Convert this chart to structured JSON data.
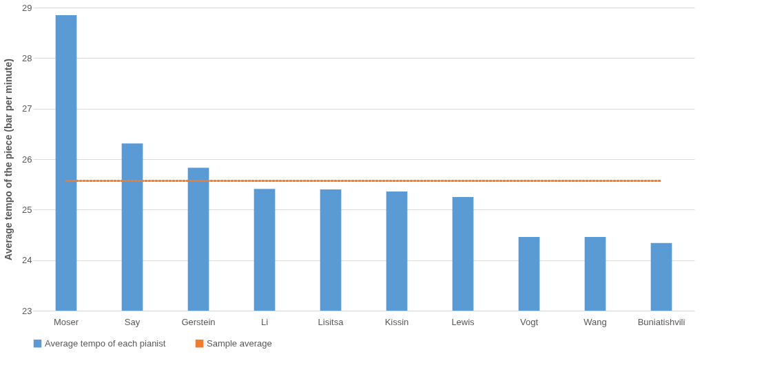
{
  "chart_data": {
    "type": "bar",
    "ylabel": "Average  tempo of the piece (bar per minute)",
    "categories": [
      "Moser",
      "Say",
      "Gerstein",
      "Li",
      "Lisitsa",
      "Kissin",
      "Lewis",
      "Vogt",
      "Wang",
      "Buniatishvili"
    ],
    "series": [
      {
        "name": "Average tempo of each pianist",
        "color": "#5b9bd5",
        "values": [
          28.85,
          26.31,
          25.83,
          25.41,
          25.4,
          25.36,
          25.25,
          24.46,
          24.46,
          24.34
        ]
      },
      {
        "name": "Sample average",
        "type": "line",
        "line_style": "dotted",
        "color": "#ed7d31",
        "values": [
          25.57,
          25.57,
          25.57,
          25.57,
          25.57,
          25.57,
          25.57,
          25.57,
          25.57,
          25.57
        ]
      }
    ],
    "ylim": [
      23,
      29
    ],
    "yticks": [
      23,
      24,
      25,
      26,
      27,
      28,
      29
    ],
    "grid": "y",
    "legend": "bottom"
  }
}
